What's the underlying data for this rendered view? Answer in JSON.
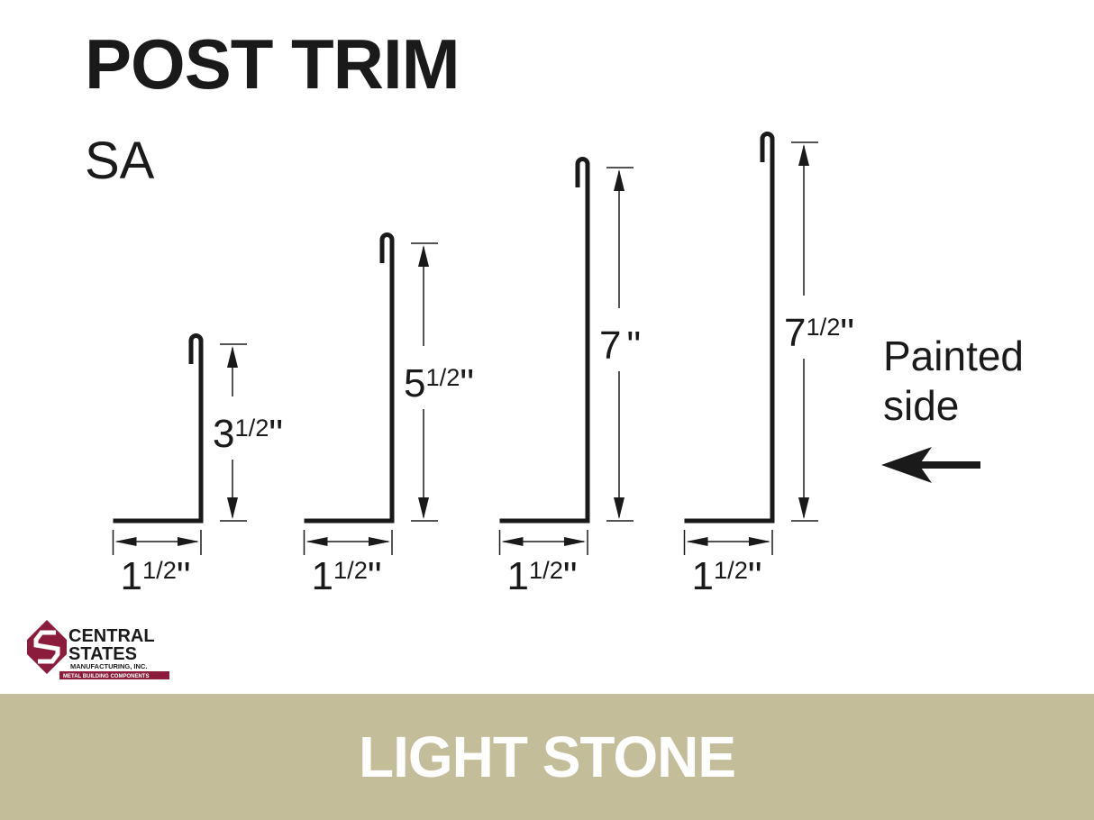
{
  "title": "POST TRIM",
  "subtitle": "SA",
  "painted_side": {
    "line1": "Painted",
    "line2": "side",
    "arrow_icon": "arrow-left-icon"
  },
  "color_name": "LIGHT STONE",
  "colors": {
    "band": "#c4bd99",
    "ink": "#1a1a1a",
    "logo": "#8b1c3c"
  },
  "logo": {
    "line1": "CENTRAL",
    "line2": "STATES",
    "line3": "MANUFACTURING, INC.",
    "line4": "METAL BUILDING COMPONENTS"
  },
  "profiles": [
    {
      "height_in": 3.5,
      "width_in": 1.5,
      "height_label": {
        "whole": "3",
        "fraction": "1/2",
        "unit": "\""
      },
      "width_label": {
        "whole": "1",
        "fraction": "1/2",
        "unit": "\""
      }
    },
    {
      "height_in": 5.5,
      "width_in": 1.5,
      "height_label": {
        "whole": "5",
        "fraction": "1/2",
        "unit": "\""
      },
      "width_label": {
        "whole": "1",
        "fraction": "1/2",
        "unit": "\""
      }
    },
    {
      "height_in": 7,
      "width_in": 1.5,
      "height_label": {
        "whole": "7",
        "fraction": "",
        "unit": "\""
      },
      "width_label": {
        "whole": "1",
        "fraction": "1/2",
        "unit": "\""
      }
    },
    {
      "height_in": 7.5,
      "width_in": 1.5,
      "height_label": {
        "whole": "7",
        "fraction": "1/2",
        "unit": "\""
      },
      "width_label": {
        "whole": "1",
        "fraction": "1/2",
        "unit": "\""
      }
    }
  ]
}
